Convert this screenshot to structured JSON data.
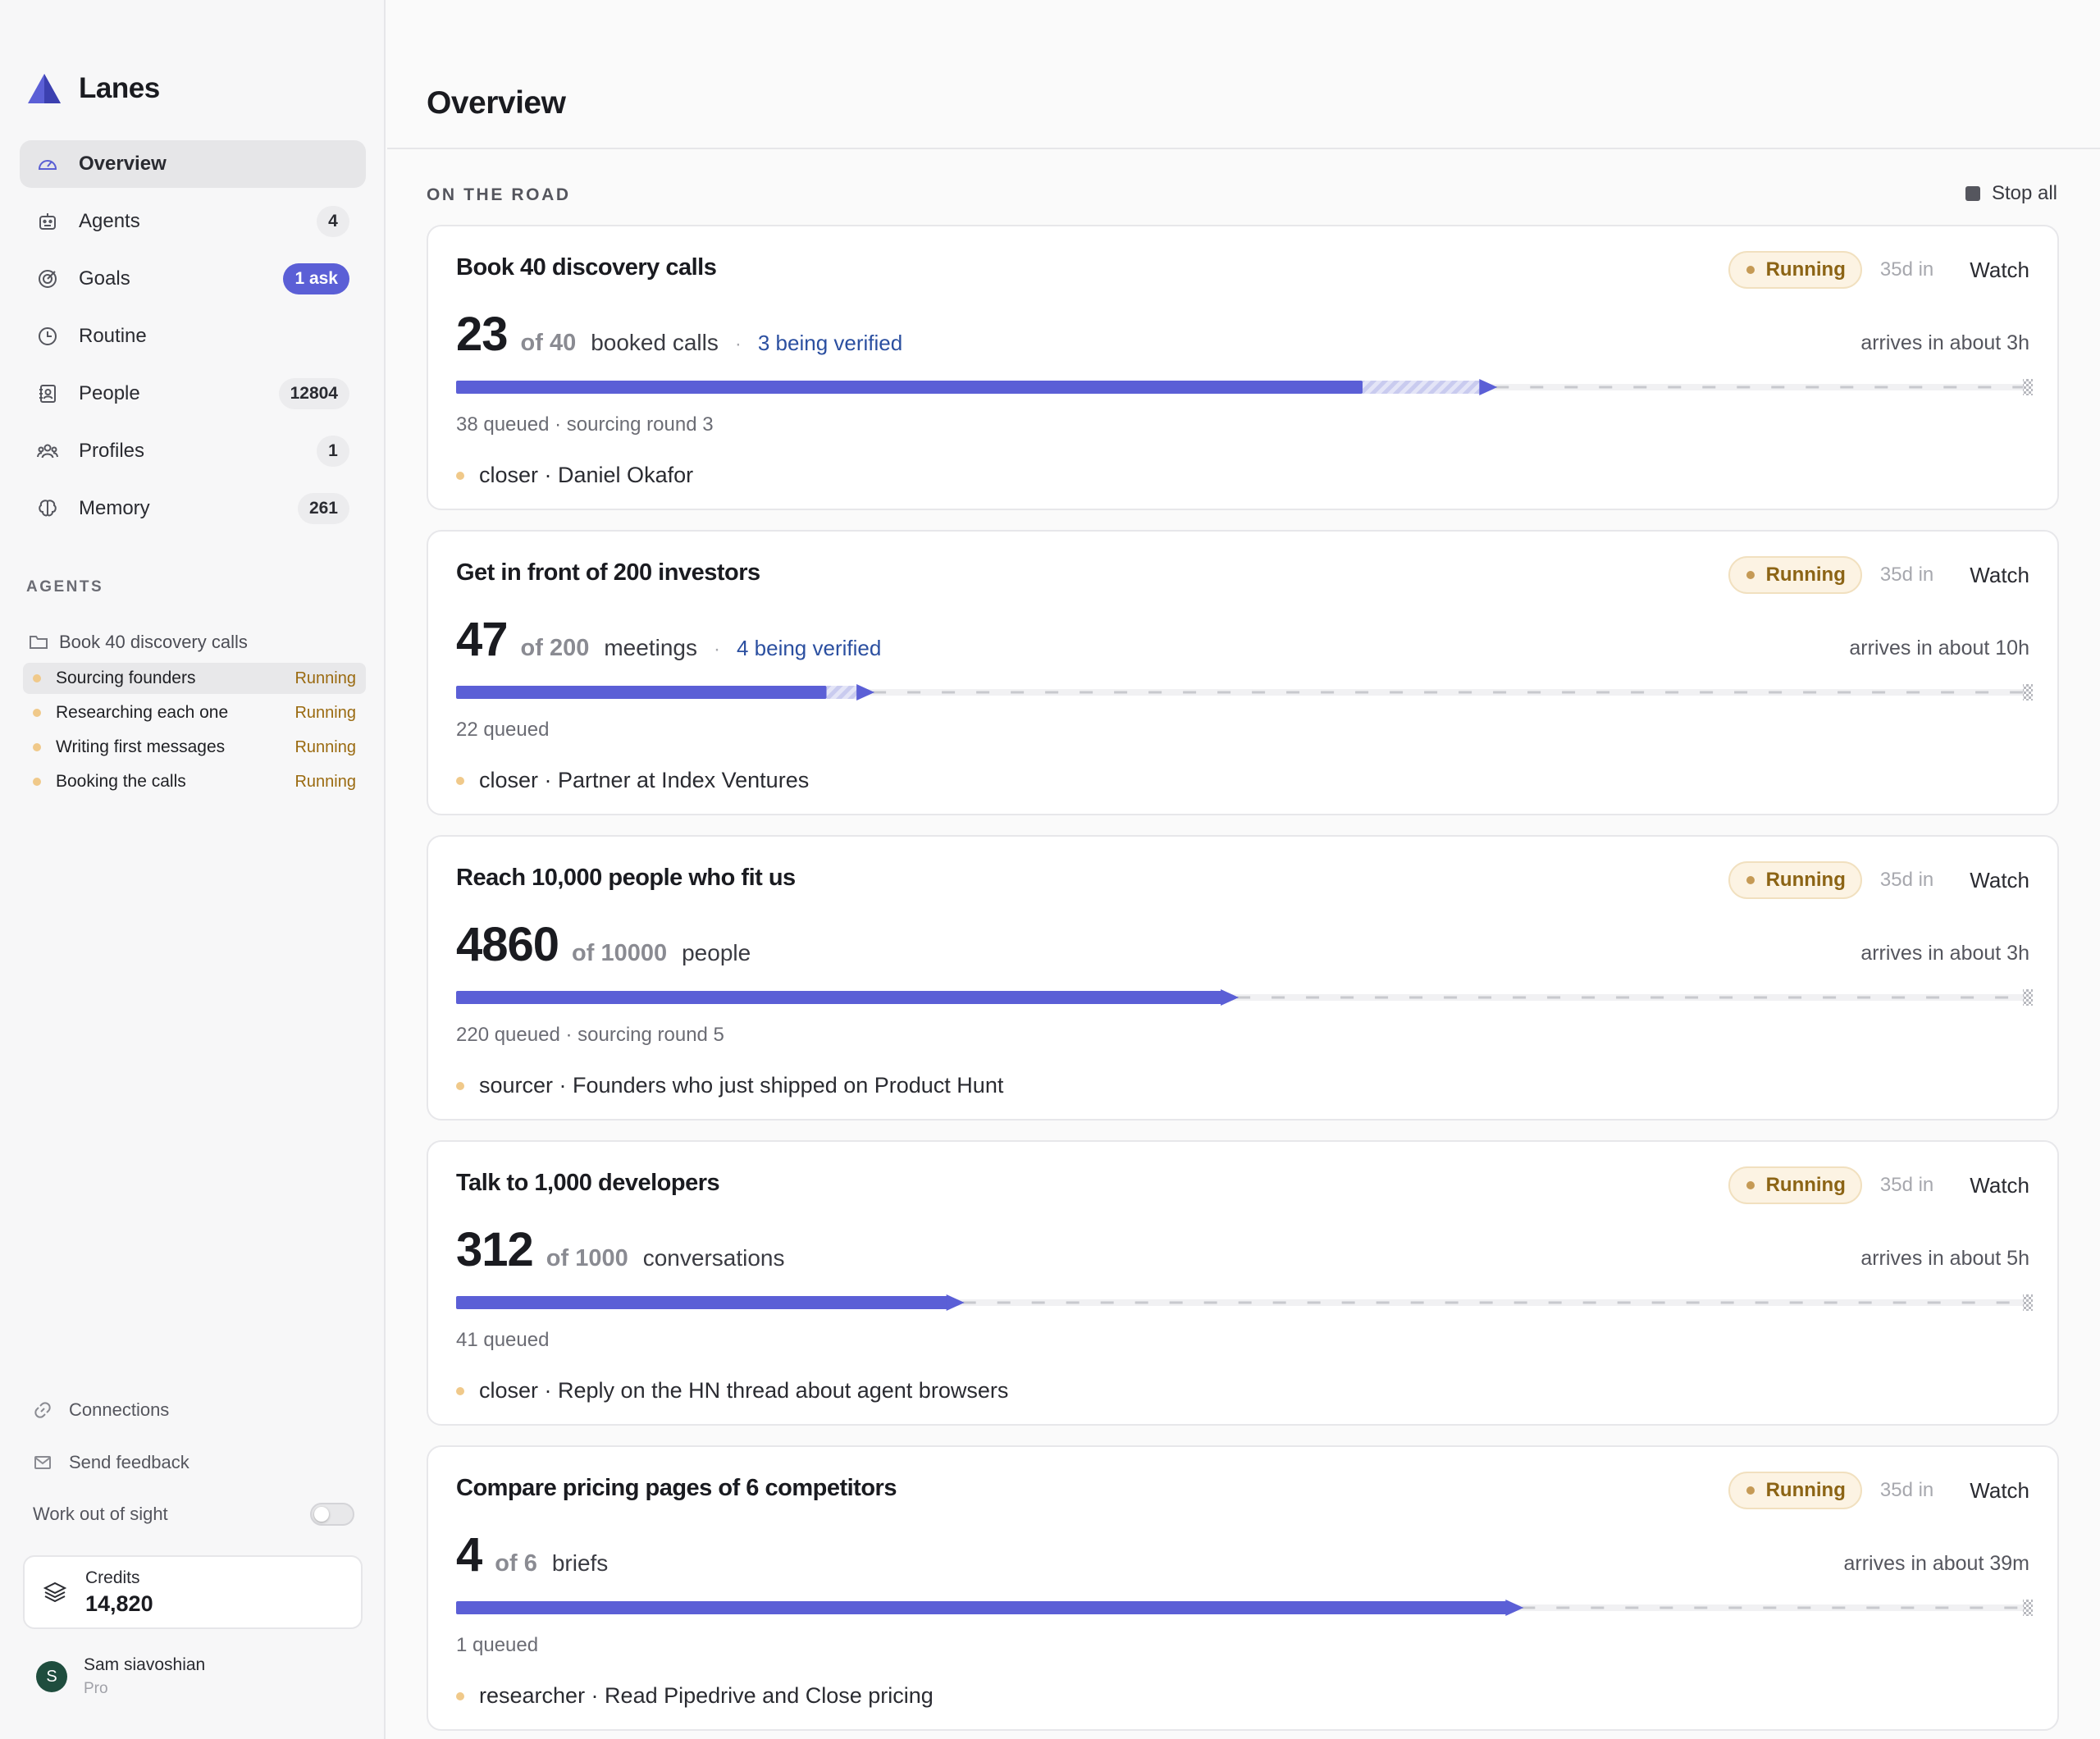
{
  "app": {
    "name": "Lanes"
  },
  "nav": [
    {
      "label": "Overview",
      "icon": "gauge-icon",
      "badge": null,
      "active": true
    },
    {
      "label": "Agents",
      "icon": "robot-icon",
      "badge": "4",
      "active": false
    },
    {
      "label": "Goals",
      "icon": "target-icon",
      "badge": "1 ask",
      "badge_accent": true,
      "active": false
    },
    {
      "label": "Routine",
      "icon": "clock-icon",
      "badge": null,
      "active": false
    },
    {
      "label": "People",
      "icon": "contact-book-icon",
      "badge": "12804",
      "active": false
    },
    {
      "label": "Profiles",
      "icon": "users-icon",
      "badge": "1",
      "active": false
    },
    {
      "label": "Memory",
      "icon": "brain-icon",
      "badge": "261",
      "active": false
    }
  ],
  "agents_section": {
    "label": "AGENTS",
    "folder": "Book 40 discovery calls",
    "lanes": [
      {
        "name": "Sourcing founders",
        "status": "Running",
        "active": true
      },
      {
        "name": "Researching each one",
        "status": "Running",
        "active": false
      },
      {
        "name": "Writing first messages",
        "status": "Running",
        "active": false
      },
      {
        "name": "Booking the calls",
        "status": "Running",
        "active": false
      }
    ]
  },
  "footer": {
    "connections": "Connections",
    "feedback": "Send feedback",
    "work_out_of_sight": "Work out of sight",
    "work_out_of_sight_on": false,
    "credits_label": "Credits",
    "credits_value": "14,820",
    "user_initial": "S",
    "user_name": "Sam siavoshian",
    "user_plan": "Pro"
  },
  "main": {
    "title": "Overview",
    "section_label": "ON THE ROAD",
    "stop_all": "Stop all"
  },
  "colors": {
    "accent": "#5b5fd6",
    "running_bg": "#fcf3e3",
    "running_text": "#8c6415",
    "verify_link": "#2b4fa0"
  },
  "cards": [
    {
      "title": "Book 40 discovery calls",
      "status": "Running",
      "since": "35d in",
      "watch": "Watch",
      "count": "23",
      "of": "of 40",
      "unit": "booked calls",
      "sep": "·",
      "verifying": "3 being verified",
      "eta": "arrives in about 3h",
      "done": 23,
      "verifying_n": 3,
      "total": 40,
      "sub": "38 queued · sourcing round 3",
      "worker": "closer · Daniel Okafor"
    },
    {
      "title": "Get in front of 200 investors",
      "status": "Running",
      "since": "35d in",
      "watch": "Watch",
      "count": "47",
      "of": "of 200",
      "unit": "meetings",
      "sep": "·",
      "verifying": "4 being verified",
      "eta": "arrives in about 10h",
      "done": 47,
      "verifying_n": 4,
      "total": 200,
      "sub": "22 queued",
      "worker": "closer · Partner at Index Ventures"
    },
    {
      "title": "Reach 10,000 people who fit us",
      "status": "Running",
      "since": "35d in",
      "watch": "Watch",
      "count": "4860",
      "of": "of 10000",
      "unit": "people",
      "sep": "",
      "verifying": "",
      "eta": "arrives in about 3h",
      "done": 4860,
      "verifying_n": 0,
      "total": 10000,
      "sub": "220 queued · sourcing round 5",
      "worker": "sourcer · Founders who just shipped on Product Hunt"
    },
    {
      "title": "Talk to 1,000 developers",
      "status": "Running",
      "since": "35d in",
      "watch": "Watch",
      "count": "312",
      "of": "of 1000",
      "unit": "conversations",
      "sep": "",
      "verifying": "",
      "eta": "arrives in about 5h",
      "done": 312,
      "verifying_n": 0,
      "total": 1000,
      "sub": "41 queued",
      "worker": "closer · Reply on the HN thread about agent browsers"
    },
    {
      "title": "Compare pricing pages of 6 competitors",
      "status": "Running",
      "since": "35d in",
      "watch": "Watch",
      "count": "4",
      "of": "of 6",
      "unit": "briefs",
      "sep": "",
      "verifying": "",
      "eta": "arrives in about 39m",
      "done": 4,
      "verifying_n": 0,
      "total": 6,
      "sub": "1 queued",
      "worker": "researcher · Read Pipedrive and Close pricing"
    }
  ]
}
